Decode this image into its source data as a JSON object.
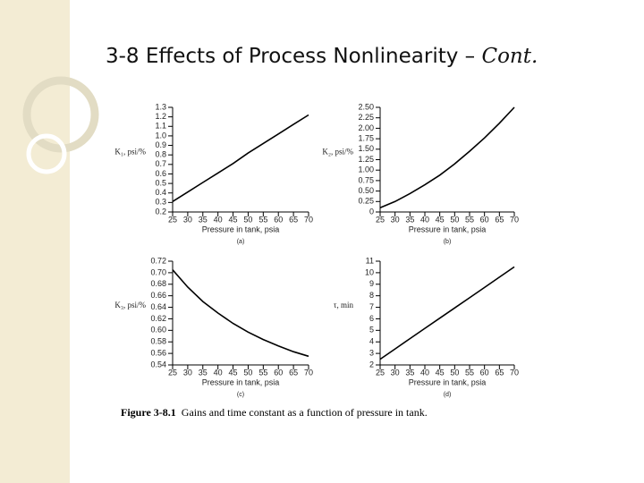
{
  "title": "3-8 Effects of Process Nonlinearity – ",
  "title_suffix": "Cont.",
  "caption_label": "Figure 3-8.1",
  "caption_text": "Gains and time constant as a function of pressure in tank.",
  "chart_data": [
    {
      "type": "line",
      "ylabel": "K₁, psi/%",
      "xlabel": "Pressure in tank, psia",
      "subcaption": "(a)",
      "x": [
        25,
        30,
        35,
        40,
        45,
        50,
        55,
        60,
        65,
        70
      ],
      "values": [
        0.31,
        0.41,
        0.51,
        0.61,
        0.71,
        0.82,
        0.92,
        1.02,
        1.12,
        1.22
      ],
      "color": "#000000",
      "xlim": [
        25,
        70
      ],
      "xticks": [
        25,
        30,
        35,
        40,
        45,
        50,
        55,
        60,
        65,
        70
      ],
      "ylim": [
        0.2,
        1.3
      ],
      "yticks": [
        0.2,
        0.3,
        0.4,
        0.5,
        0.6,
        0.7,
        0.8,
        0.9,
        {
          "value": 1.0,
          "label": "1.0"
        },
        1.1,
        1.2,
        1.3
      ]
    },
    {
      "type": "line",
      "ylabel": "K₂, psi/%",
      "xlabel": "Pressure in tank, psia",
      "subcaption": "(b)",
      "x": [
        25,
        30,
        35,
        40,
        45,
        50,
        55,
        60,
        65,
        70
      ],
      "values": [
        0.1,
        0.25,
        0.44,
        0.65,
        0.88,
        1.15,
        1.45,
        1.77,
        2.12,
        2.5
      ],
      "color": "#000000",
      "xlim": [
        25,
        70
      ],
      "xticks": [
        25,
        30,
        35,
        40,
        45,
        50,
        55,
        60,
        65,
        70
      ],
      "ylim": [
        0,
        2.5
      ],
      "yticks": [
        0,
        0.25,
        {
          "value": 0.5,
          "label": "0.50"
        },
        0.75,
        {
          "value": 1.0,
          "label": "1.00"
        },
        1.25,
        {
          "value": 1.5,
          "label": "1.50"
        },
        1.75,
        {
          "value": 2.0,
          "label": "2.00"
        },
        2.25,
        {
          "value": 2.5,
          "label": "2.50"
        }
      ]
    },
    {
      "type": "line",
      "ylabel": "K₃, psi/%",
      "xlabel": "Pressure in tank, psia",
      "subcaption": "(c)",
      "x": [
        25,
        30,
        35,
        40,
        45,
        50,
        55,
        60,
        65,
        70
      ],
      "values": [
        0.705,
        0.675,
        0.65,
        0.63,
        0.612,
        0.597,
        0.584,
        0.573,
        0.563,
        0.555
      ],
      "color": "#000000",
      "xlim": [
        25,
        70
      ],
      "xticks": [
        25,
        30,
        35,
        40,
        45,
        50,
        55,
        60,
        65,
        70
      ],
      "ylim": [
        0.54,
        0.72
      ],
      "yticks": [
        0.54,
        0.56,
        0.58,
        {
          "value": 0.6,
          "label": "0.60"
        },
        0.62,
        0.64,
        0.66,
        0.68,
        {
          "value": 0.7,
          "label": "0.70"
        },
        0.72
      ]
    },
    {
      "type": "line",
      "ylabel": "τ, min",
      "xlabel": "Pressure in tank, psia",
      "subcaption": "(d)",
      "x": [
        25,
        30,
        35,
        40,
        45,
        50,
        55,
        60,
        65,
        70
      ],
      "values": [
        2.5,
        3.39,
        4.28,
        5.17,
        6.06,
        6.94,
        7.83,
        8.72,
        9.61,
        10.5
      ],
      "color": "#000000",
      "xlim": [
        25,
        70
      ],
      "xticks": [
        25,
        30,
        35,
        40,
        45,
        50,
        55,
        60,
        65,
        70
      ],
      "ylim": [
        2,
        11
      ],
      "yticks": [
        2,
        3,
        4,
        5,
        6,
        7,
        8,
        9,
        10,
        11
      ]
    }
  ]
}
